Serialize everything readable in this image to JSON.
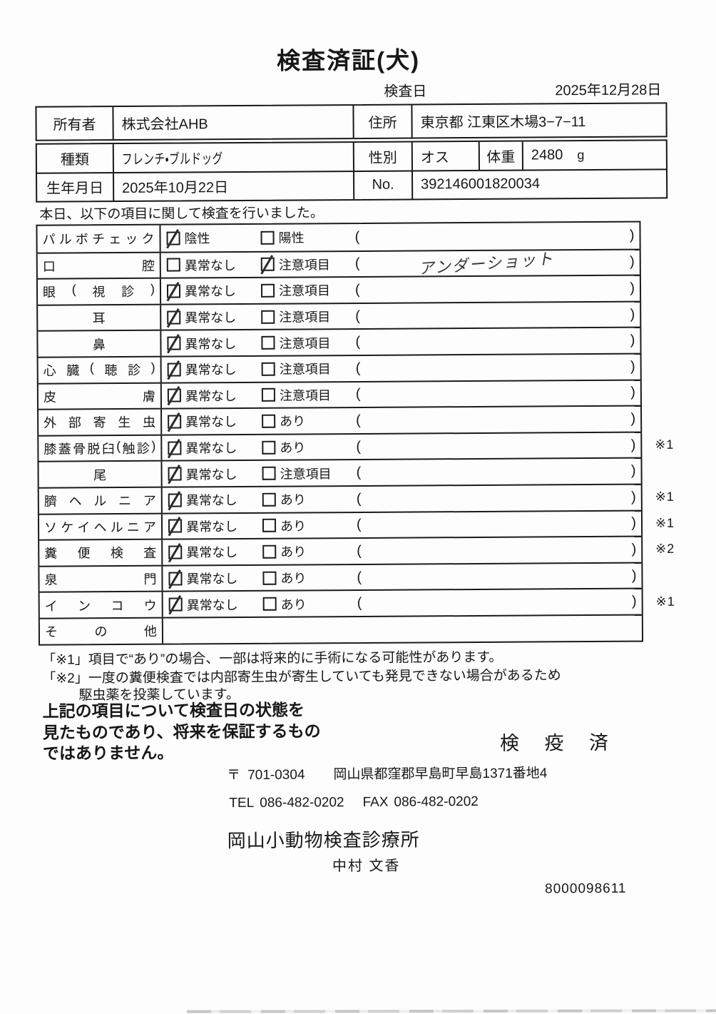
{
  "document": {
    "title": "検査済証(犬)",
    "inspection_date_label": "検査日",
    "inspection_date": "2025年12月28日",
    "intro_line": "本日、以下の項目に関して検査を行いました。",
    "serial_number": "8000098611"
  },
  "owner_box": {
    "owner_label": "所有者",
    "owner_name": "株式会社AHB",
    "address_label": "住所",
    "address": "東京都 江東区木場3−7−11"
  },
  "animal_box": {
    "breed_label": "種類",
    "breed": "フレンチ・ブルドッグ",
    "sex_label": "性別",
    "sex": "オス",
    "weight_label": "体重",
    "weight_value": "2480",
    "weight_unit": "g",
    "birth_label": "生年月日",
    "birth_date": "2025年10月22日",
    "no_label": "No.",
    "no_value": "392146001820034"
  },
  "items": [
    {
      "label": "パルボチェック",
      "align": "justify",
      "options": [
        {
          "text": "陰性",
          "checked": true
        },
        {
          "text": "陽性",
          "checked": false
        }
      ],
      "paren": true,
      "note": "",
      "mark": ""
    },
    {
      "label": "口腔",
      "align": "justify",
      "options": [
        {
          "text": "異常なし",
          "checked": false
        },
        {
          "text": "注意項目",
          "checked": true
        }
      ],
      "paren": true,
      "note": "アンダーショット",
      "mark": ""
    },
    {
      "label": "眼(視診)",
      "align": "justify",
      "options": [
        {
          "text": "異常なし",
          "checked": true
        },
        {
          "text": "注意項目",
          "checked": false
        }
      ],
      "paren": true,
      "note": "",
      "mark": ""
    },
    {
      "label": "耳",
      "align": "center",
      "options": [
        {
          "text": "異常なし",
          "checked": true
        },
        {
          "text": "注意項目",
          "checked": false
        }
      ],
      "paren": true,
      "note": "",
      "mark": ""
    },
    {
      "label": "鼻",
      "align": "center",
      "options": [
        {
          "text": "異常なし",
          "checked": true
        },
        {
          "text": "注意項目",
          "checked": false
        }
      ],
      "paren": true,
      "note": "",
      "mark": ""
    },
    {
      "label": "心臓(聴診)",
      "align": "justify",
      "options": [
        {
          "text": "異常なし",
          "checked": true
        },
        {
          "text": "注意項目",
          "checked": false
        }
      ],
      "paren": true,
      "note": "",
      "mark": ""
    },
    {
      "label": "皮膚",
      "align": "justify",
      "options": [
        {
          "text": "異常なし",
          "checked": true
        },
        {
          "text": "注意項目",
          "checked": false
        }
      ],
      "paren": true,
      "note": "",
      "mark": ""
    },
    {
      "label": "外部寄生虫",
      "align": "justify",
      "options": [
        {
          "text": "異常なし",
          "checked": true
        },
        {
          "text": "あり",
          "checked": false
        }
      ],
      "paren": true,
      "note": "",
      "mark": ""
    },
    {
      "label": "膝蓋骨脱臼(触診)",
      "align": "justify",
      "options": [
        {
          "text": "異常なし",
          "checked": true
        },
        {
          "text": "あり",
          "checked": false
        }
      ],
      "paren": true,
      "note": "",
      "mark": "※1"
    },
    {
      "label": "尾",
      "align": "center",
      "options": [
        {
          "text": "異常なし",
          "checked": true
        },
        {
          "text": "注意項目",
          "checked": false
        }
      ],
      "paren": true,
      "note": "",
      "mark": ""
    },
    {
      "label": "臍ヘルニア",
      "align": "justify",
      "options": [
        {
          "text": "異常なし",
          "checked": true
        },
        {
          "text": "あり",
          "checked": false
        }
      ],
      "paren": true,
      "note": "",
      "mark": "※1"
    },
    {
      "label": "ソケイヘルニア",
      "align": "justify",
      "options": [
        {
          "text": "異常なし",
          "checked": true
        },
        {
          "text": "あり",
          "checked": false
        }
      ],
      "paren": true,
      "note": "",
      "mark": "※1"
    },
    {
      "label": "糞便検査",
      "align": "justify",
      "options": [
        {
          "text": "異常なし",
          "checked": true
        },
        {
          "text": "あり",
          "checked": false
        }
      ],
      "paren": true,
      "note": "",
      "mark": "※2"
    },
    {
      "label": "泉門",
      "align": "justify",
      "options": [
        {
          "text": "異常なし",
          "checked": true
        },
        {
          "text": "あり",
          "checked": false
        }
      ],
      "paren": true,
      "note": "",
      "mark": ""
    },
    {
      "label": "インコウ",
      "align": "justify",
      "options": [
        {
          "text": "異常なし",
          "checked": true
        },
        {
          "text": "あり",
          "checked": false
        }
      ],
      "paren": true,
      "note": "",
      "mark": "※1"
    },
    {
      "label": "その他",
      "align": "justify",
      "options": [],
      "paren": false,
      "note": "",
      "mark": ""
    }
  ],
  "footnotes": {
    "note1": "「※1」項目で“あり”の場合、一部は将来的に手術になる可能性があります。",
    "note2_line1": "「※2」一度の糞便検査では内部寄生虫が寄生していても発見できない場合があるため",
    "note2_line2": "駆虫薬を投薬しています。"
  },
  "disclaimer": {
    "line1": "上記の項目について検査日の状態を",
    "line2": "見たものであり、将来を保証するもの",
    "line3": "ではありません。"
  },
  "quarantine_stamp": "検 疫 済",
  "clinic": {
    "postal_mark": "〒",
    "postal_code": "701-0304",
    "address": "岡山県都窪郡早島町早島1371番地4",
    "tel_label": "TEL",
    "tel_number": "086-482-0202",
    "fax_label": "FAX",
    "fax_number": "086-482-0202",
    "name": "岡山小動物検査診療所",
    "veterinarian": "中村 文香"
  }
}
